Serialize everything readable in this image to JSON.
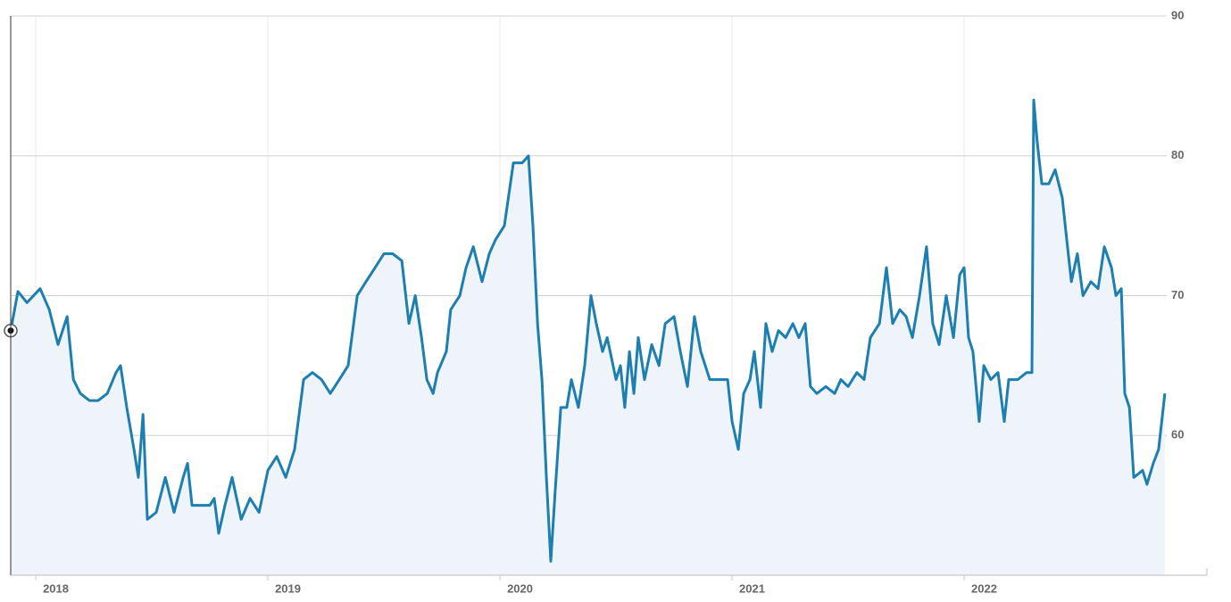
{
  "chart_data": {
    "type": "area",
    "color": "#1d7eb0",
    "fill_color": "#eef4f9",
    "grid": true,
    "xlim": [
      2017.892,
      2023.046
    ],
    "xticks": [
      2018,
      2019,
      2020,
      2021,
      2022
    ],
    "ylim": [
      50,
      90
    ],
    "yticks": [
      60,
      70,
      80,
      90
    ],
    "x": [
      2017.892,
      2017.923,
      2017.962,
      2018.019,
      2018.058,
      2018.096,
      2018.135,
      2018.162,
      2018.192,
      2018.231,
      2018.269,
      2018.308,
      2018.346,
      2018.365,
      2018.392,
      2018.423,
      2018.442,
      2018.462,
      2018.481,
      2018.519,
      2018.558,
      2018.596,
      2018.635,
      2018.654,
      2018.673,
      2018.712,
      2018.75,
      2018.769,
      2018.788,
      2018.815,
      2018.846,
      2018.885,
      2018.923,
      2018.962,
      2019.0,
      2019.038,
      2019.077,
      2019.115,
      2019.154,
      2019.192,
      2019.231,
      2019.269,
      2019.308,
      2019.346,
      2019.385,
      2019.423,
      2019.462,
      2019.5,
      2019.538,
      2019.577,
      2019.608,
      2019.635,
      2019.662,
      2019.685,
      2019.712,
      2019.731,
      2019.769,
      2019.788,
      2019.827,
      2019.854,
      2019.885,
      2019.923,
      2019.954,
      2019.981,
      2020.019,
      2020.058,
      2020.096,
      2020.123,
      2020.142,
      2020.162,
      2020.181,
      2020.2,
      2020.219,
      2020.238,
      2020.262,
      2020.288,
      2020.308,
      2020.338,
      2020.365,
      2020.392,
      2020.415,
      2020.442,
      2020.462,
      2020.5,
      2020.519,
      2020.538,
      2020.558,
      2020.577,
      2020.596,
      2020.623,
      2020.654,
      2020.685,
      2020.712,
      2020.75,
      2020.777,
      2020.808,
      2020.838,
      2020.865,
      2020.904,
      2020.942,
      2020.981,
      2021.0,
      2021.027,
      2021.05,
      2021.077,
      2021.096,
      2021.123,
      2021.146,
      2021.173,
      2021.2,
      2021.231,
      2021.262,
      2021.288,
      2021.315,
      2021.338,
      2021.365,
      2021.404,
      2021.442,
      2021.469,
      2021.5,
      2021.538,
      2021.569,
      2021.596,
      2021.635,
      2021.665,
      2021.692,
      2021.723,
      2021.75,
      2021.777,
      2021.808,
      2021.838,
      2021.865,
      2021.892,
      2021.923,
      2021.954,
      2021.981,
      2022.0,
      2022.019,
      2022.038,
      2022.065,
      2022.085,
      2022.115,
      2022.146,
      2022.173,
      2022.192,
      2022.231,
      2022.269,
      2022.292,
      2022.3,
      2022.315,
      2022.335,
      2022.365,
      2022.392,
      2022.423,
      2022.442,
      2022.462,
      2022.488,
      2022.512,
      2022.546,
      2022.577,
      2022.604,
      2022.635,
      2022.654,
      2022.677,
      2022.692,
      2022.712,
      2022.731,
      2022.769,
      2022.788,
      2022.815,
      2022.838,
      2022.865
    ],
    "values": [
      67.5,
      70.3,
      69.5,
      70.5,
      69,
      66.5,
      68.5,
      64,
      63,
      62.5,
      62.5,
      63,
      64.5,
      65,
      62,
      59,
      57,
      61.5,
      54,
      54.5,
      57,
      54.5,
      57,
      58,
      55,
      55,
      55,
      55.5,
      53,
      55,
      57,
      54,
      55.5,
      54.5,
      57.5,
      58.5,
      57,
      59,
      64,
      64.5,
      64,
      63,
      64,
      65,
      70,
      71,
      72,
      73,
      73,
      72.5,
      68,
      70,
      67,
      64,
      63,
      64.5,
      66,
      69,
      70,
      72,
      73.5,
      71,
      73,
      74,
      75,
      79.5,
      79.5,
      80,
      75,
      68,
      64,
      57,
      51,
      56,
      62,
      62,
      64,
      62,
      65,
      70,
      68,
      66,
      67,
      64,
      65,
      62,
      66,
      63,
      67,
      64,
      66.5,
      65,
      68,
      68.5,
      66,
      63.5,
      68.5,
      66,
      64,
      64,
      64,
      61,
      59,
      63,
      64,
      66,
      62,
      68,
      66,
      67.5,
      67,
      68,
      67,
      68,
      63.5,
      63,
      63.5,
      63,
      64,
      63.5,
      64.5,
      64,
      67,
      68,
      72,
      68,
      69,
      68.5,
      67,
      70,
      73.5,
      68,
      66.5,
      70,
      67,
      71.5,
      72,
      67,
      66,
      61,
      65,
      64,
      64.5,
      61,
      64,
      64,
      64.5,
      64.5,
      84,
      81,
      78,
      78,
      79,
      77,
      74,
      71,
      73,
      70,
      71,
      70.5,
      73.5,
      72,
      70,
      70.5,
      63,
      62,
      57,
      57.5,
      56.5,
      58,
      59,
      63
    ]
  }
}
